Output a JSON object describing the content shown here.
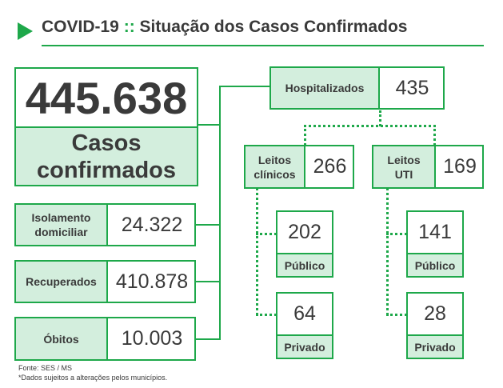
{
  "header": {
    "title_prefix": "COVID-19",
    "separator": "::",
    "title_rest": "Situação dos Casos Confirmados",
    "accent_color": "#1ea84a",
    "label_bg_color": "#d3eedd"
  },
  "total": {
    "value": "445.638",
    "label": "Casos confirmados"
  },
  "categories": [
    {
      "label": "Isolamento domiciliar",
      "value": "24.322"
    },
    {
      "label": "Recuperados",
      "value": "410.878"
    },
    {
      "label": "Óbitos",
      "value": "10.003"
    }
  ],
  "hospitalizados": {
    "label": "Hospitalizados",
    "value": "435",
    "leitos_clinicos": {
      "label": "Leitos clínicos",
      "value": "266",
      "publico": {
        "value": "202",
        "label": "Público"
      },
      "privado": {
        "value": "64",
        "label": "Privado"
      }
    },
    "leitos_uti": {
      "label": "Leitos UTI",
      "value": "169",
      "publico": {
        "value": "141",
        "label": "Público"
      },
      "privado": {
        "value": "28",
        "label": "Privado"
      }
    }
  },
  "footer": {
    "source": "Fonte: SES / MS",
    "note": "*Dados sujeitos a alterações pelos municípios."
  }
}
